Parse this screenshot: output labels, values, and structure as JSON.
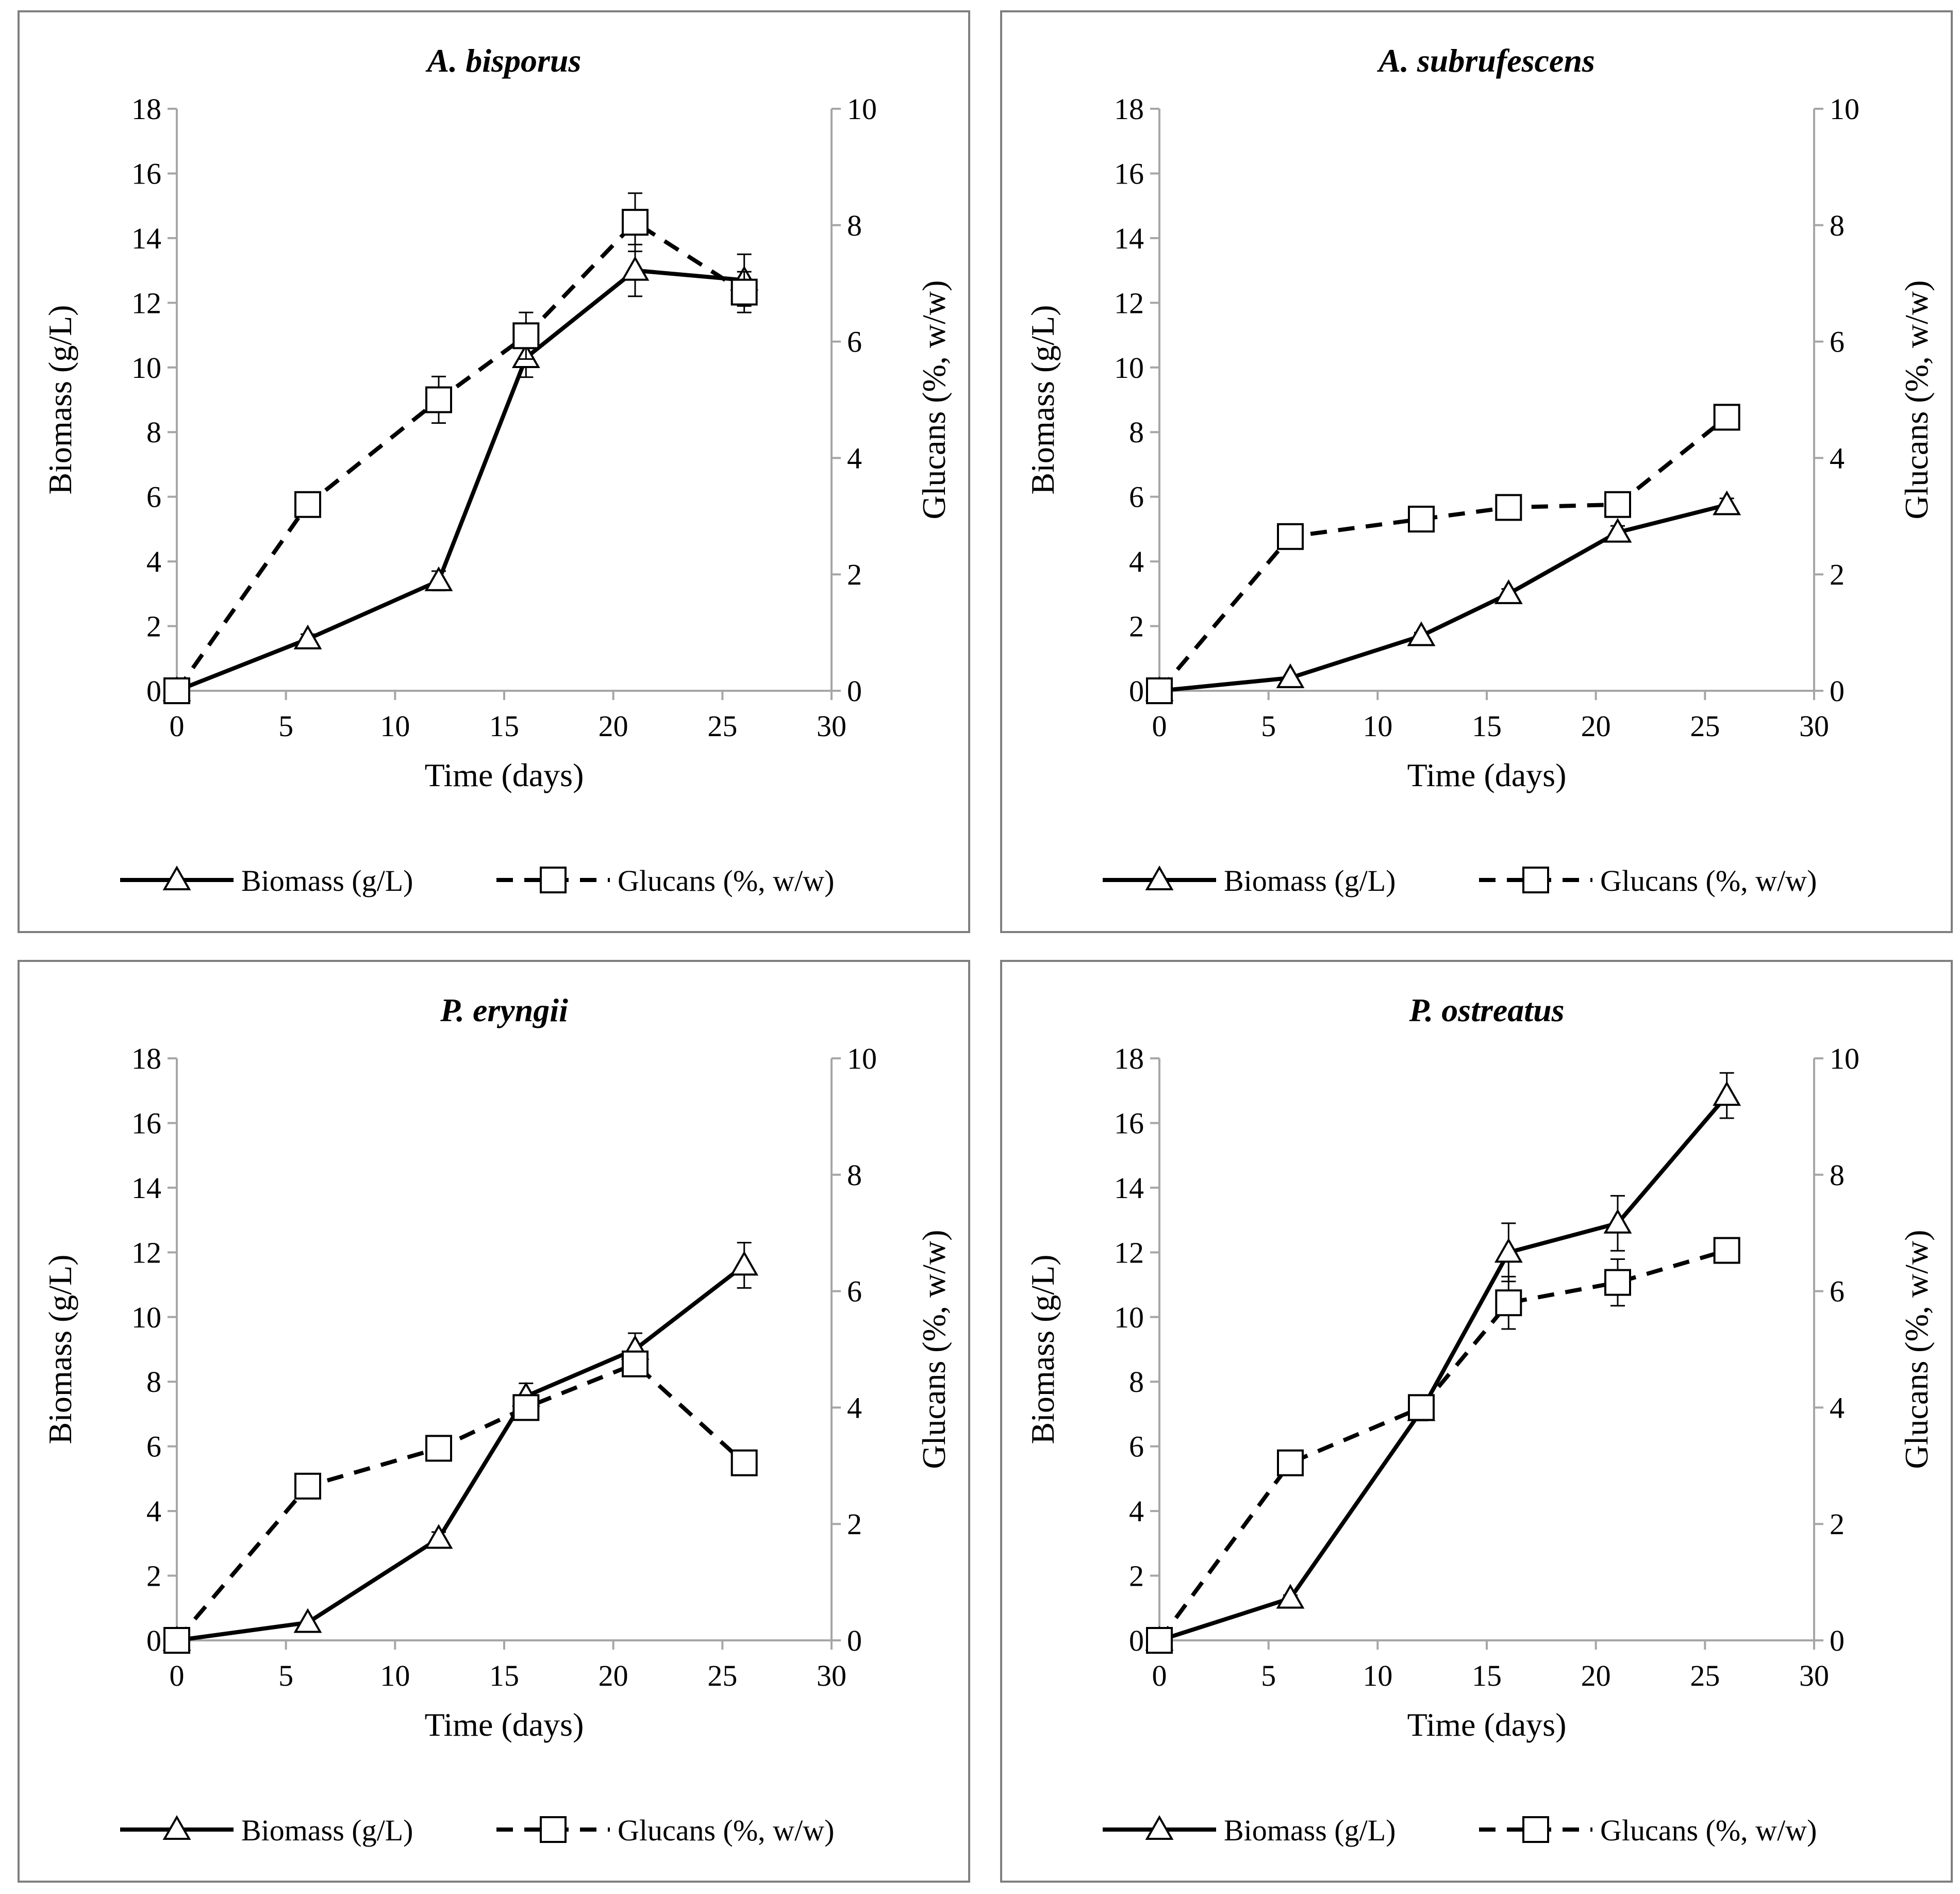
{
  "figure": {
    "legend": {
      "biomass_label": "Biomass (g/L)",
      "glucans_label": "Glucans (%, w/w)"
    }
  },
  "chart_data": [
    {
      "type": "line",
      "title": "A. bisporus",
      "xlabel": "Time (days)",
      "ylabel": "Biomass (g/L)",
      "y2label": "Glucans (%, w/w)",
      "xlim": [
        0,
        30
      ],
      "ylim": [
        0,
        18
      ],
      "y2lim": [
        0,
        10
      ],
      "xticks": [
        0,
        5,
        10,
        15,
        20,
        25,
        30
      ],
      "yticks": [
        0,
        2,
        4,
        6,
        8,
        10,
        12,
        14,
        16,
        18
      ],
      "y2ticks": [
        0,
        2,
        4,
        6,
        8,
        10
      ],
      "legend_position": "bottom",
      "x": [
        0,
        6,
        12,
        16,
        21,
        26
      ],
      "series": [
        {
          "name": "Biomass (g/L)",
          "axis": "left",
          "style": "solid",
          "marker": "triangle",
          "values": [
            0,
            1.6,
            3.4,
            10.3,
            13.0,
            12.7
          ],
          "errors": [
            0.1,
            0.15,
            0.3,
            0.6,
            0.8,
            0.8
          ]
        },
        {
          "name": "Glucans (%, w/w)",
          "axis": "right",
          "style": "dashed",
          "marker": "square",
          "values": [
            0,
            3.2,
            5.0,
            6.1,
            8.05,
            6.85
          ],
          "errors": [
            0,
            0.1,
            0.4,
            0.4,
            0.5,
            0.35
          ]
        }
      ]
    },
    {
      "type": "line",
      "title": "A. subrufescens",
      "xlabel": "Time (days)",
      "ylabel": "Biomass (g/L)",
      "y2label": "Glucans (%, w/w)",
      "xlim": [
        0,
        30
      ],
      "ylim": [
        0,
        18
      ],
      "y2lim": [
        0,
        10
      ],
      "xticks": [
        0,
        5,
        10,
        15,
        20,
        25,
        30
      ],
      "yticks": [
        0,
        2,
        4,
        6,
        8,
        10,
        12,
        14,
        16,
        18
      ],
      "y2ticks": [
        0,
        2,
        4,
        6,
        8,
        10
      ],
      "legend_position": "bottom",
      "x": [
        0,
        6,
        12,
        16,
        21,
        26
      ],
      "series": [
        {
          "name": "Biomass (g/L)",
          "axis": "left",
          "style": "solid",
          "marker": "triangle",
          "values": [
            0,
            0.4,
            1.7,
            3.0,
            4.9,
            5.75
          ],
          "errors": [
            0,
            0.05,
            0.1,
            0.15,
            0.2,
            0.2
          ]
        },
        {
          "name": "Glucans (%, w/w)",
          "axis": "right",
          "style": "dashed",
          "marker": "square",
          "values": [
            0,
            2.65,
            2.95,
            3.15,
            3.2,
            4.7
          ],
          "errors": [
            0,
            0.1,
            0.1,
            0.1,
            0.1,
            0.1
          ]
        }
      ]
    },
    {
      "type": "line",
      "title": "P. eryngii",
      "xlabel": "Time (days)",
      "ylabel": "Biomass (g/L)",
      "y2label": "Glucans (%, w/w)",
      "xlim": [
        0,
        30
      ],
      "ylim": [
        0,
        18
      ],
      "y2lim": [
        0,
        10
      ],
      "xticks": [
        0,
        5,
        10,
        15,
        20,
        25,
        30
      ],
      "yticks": [
        0,
        2,
        4,
        6,
        8,
        10,
        12,
        14,
        16,
        18
      ],
      "y2ticks": [
        0,
        2,
        4,
        6,
        8,
        10
      ],
      "legend_position": "bottom",
      "x": [
        0,
        6,
        12,
        16,
        21,
        26
      ],
      "series": [
        {
          "name": "Biomass (g/L)",
          "axis": "left",
          "style": "solid",
          "marker": "triangle",
          "values": [
            0,
            0.55,
            3.15,
            7.55,
            9.0,
            11.6
          ],
          "errors": [
            0,
            0.05,
            0.2,
            0.4,
            0.5,
            0.7
          ]
        },
        {
          "name": "Glucans (%, w/w)",
          "axis": "right",
          "style": "dashed",
          "marker": "square",
          "values": [
            0,
            2.65,
            3.3,
            4.0,
            4.75,
            3.05
          ],
          "errors": [
            0,
            0.05,
            0.1,
            0.1,
            0.1,
            0.05
          ]
        }
      ]
    },
    {
      "type": "line",
      "title": "P. ostreatus",
      "xlabel": "Time (days)",
      "ylabel": "Biomass (g/L)",
      "y2label": "Glucans (%, w/w)",
      "xlim": [
        0,
        30
      ],
      "ylim": [
        0,
        18
      ],
      "y2lim": [
        0,
        10
      ],
      "xticks": [
        0,
        5,
        10,
        15,
        20,
        25,
        30
      ],
      "yticks": [
        0,
        2,
        4,
        6,
        8,
        10,
        12,
        14,
        16,
        18
      ],
      "y2ticks": [
        0,
        2,
        4,
        6,
        8,
        10
      ],
      "legend_position": "bottom",
      "x": [
        0,
        6,
        12,
        16,
        21,
        26
      ],
      "series": [
        {
          "name": "Biomass (g/L)",
          "axis": "left",
          "style": "solid",
          "marker": "triangle",
          "values": [
            0,
            1.3,
            7.1,
            12.0,
            12.9,
            16.85
          ],
          "errors": [
            0,
            0.1,
            0.3,
            0.9,
            0.85,
            0.7
          ]
        },
        {
          "name": "Glucans (%, w/w)",
          "axis": "right",
          "style": "dashed",
          "marker": "square",
          "values": [
            0,
            3.05,
            4.0,
            5.8,
            6.15,
            6.7
          ],
          "errors": [
            0,
            0.1,
            0.1,
            0.45,
            0.4,
            0.2
          ]
        }
      ]
    }
  ]
}
